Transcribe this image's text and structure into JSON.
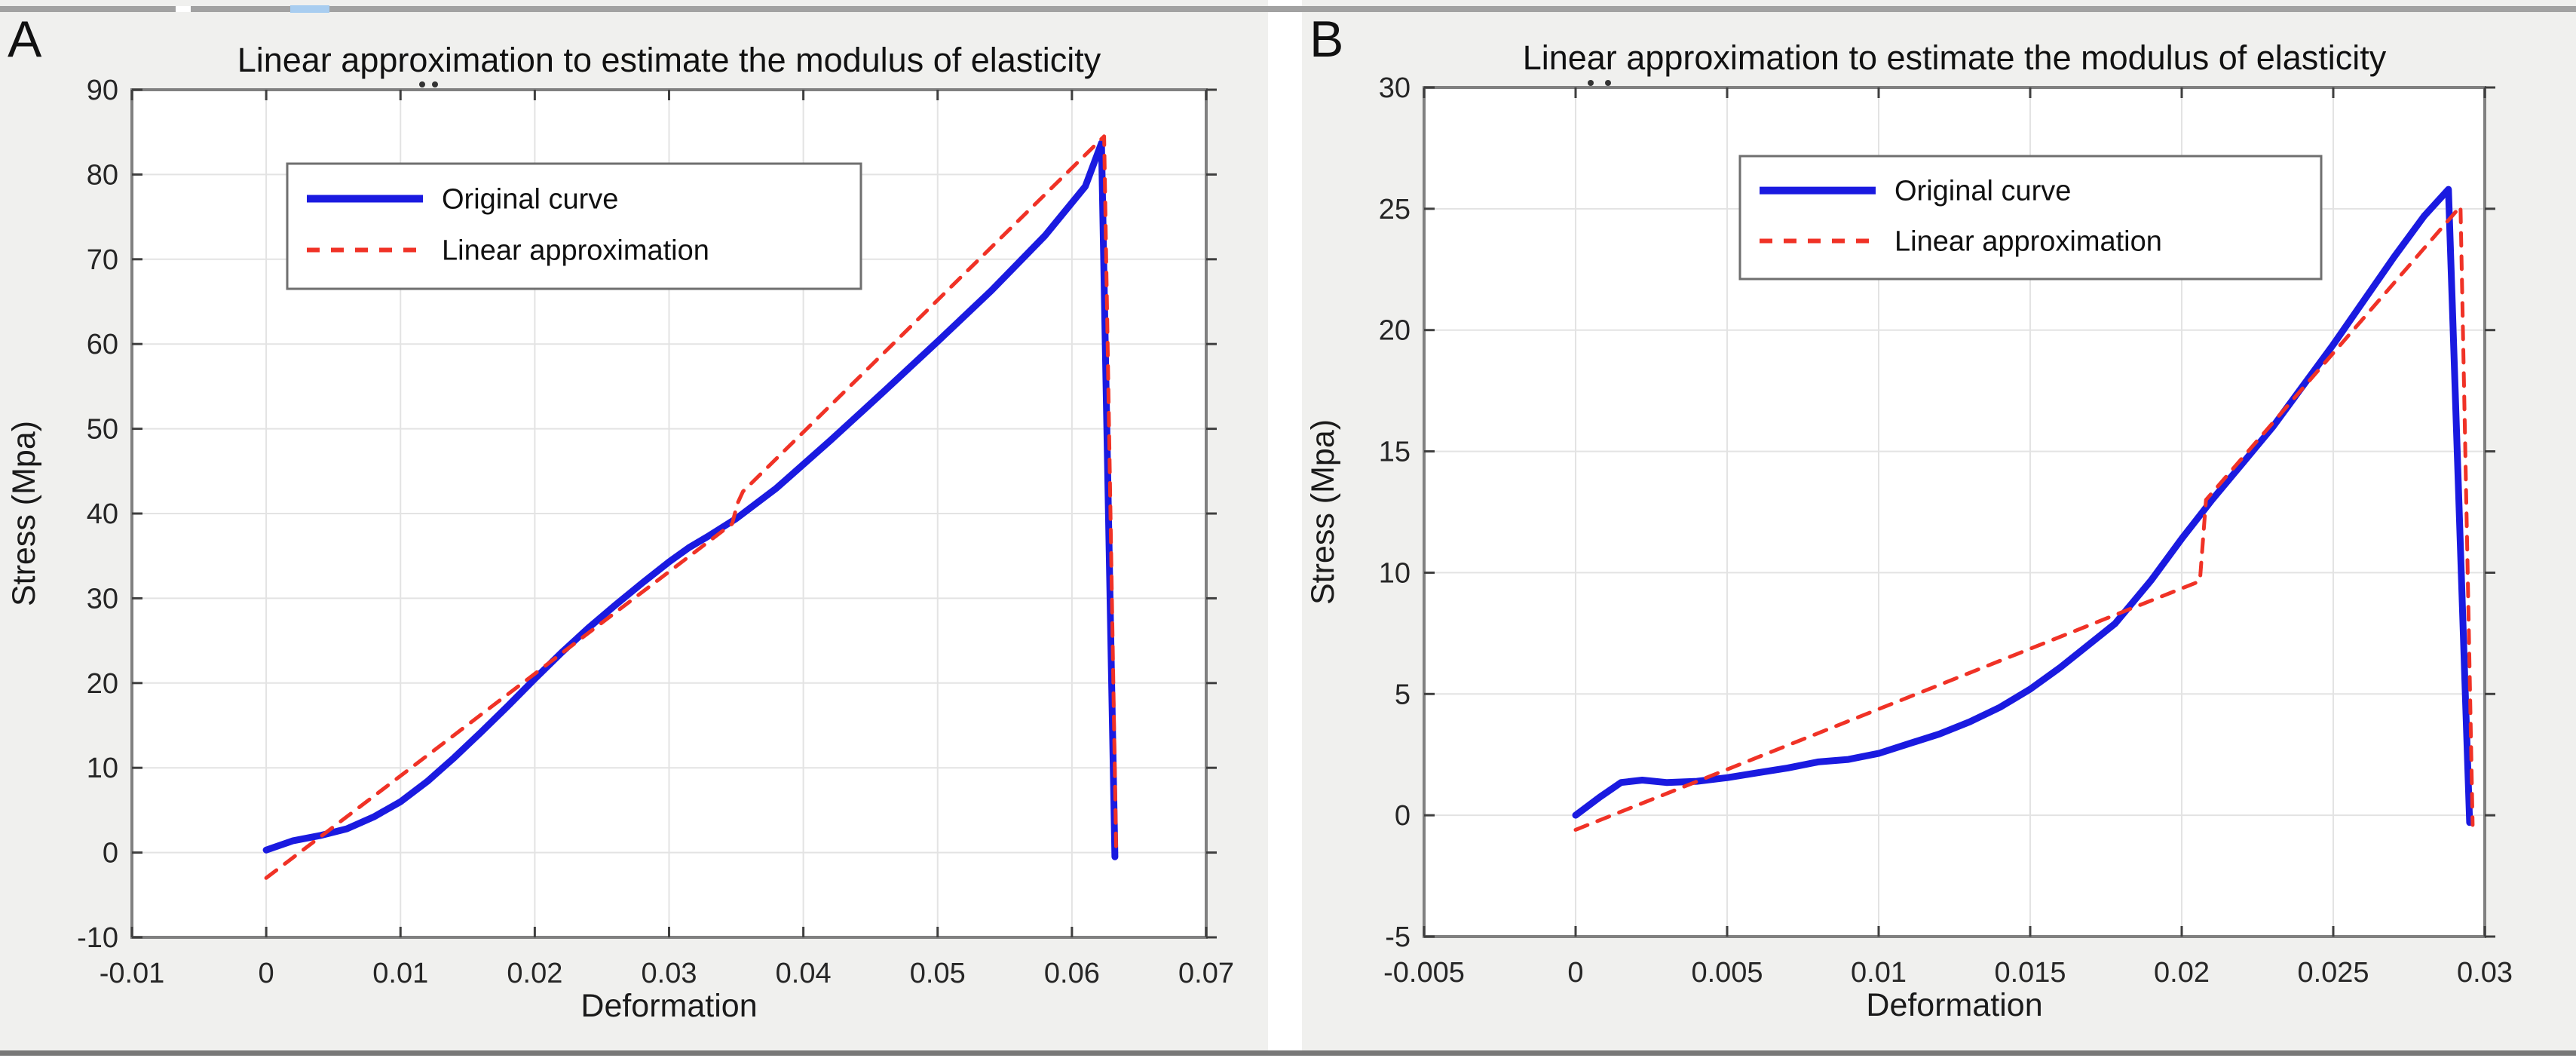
{
  "figure": {
    "panel_a_label": "A",
    "panel_b_label": "B"
  },
  "colors": {
    "original_curve": "#1a1ae0",
    "linear_approximation": "#f03226",
    "figure_background": "#f0f0ee",
    "plot_background": "#ffffff",
    "grid": "#e3e3e3",
    "frame": "#808080",
    "tick": "#3f3f3f"
  },
  "chart_data": [
    {
      "type": "line",
      "panel": "A",
      "title": "Linear approximation to estimate the modulus of elasticity",
      "xlabel": "Deformation",
      "ylabel": "Stress (Mpa)",
      "xlim": [
        -0.01,
        0.07
      ],
      "ylim": [
        -10,
        90
      ],
      "xticks": [
        -0.01,
        0,
        0.01,
        0.02,
        0.03,
        0.04,
        0.05,
        0.06,
        0.07
      ],
      "xtick_labels": [
        "-0.01",
        "0",
        "0.01",
        "0.02",
        "0.03",
        "0.04",
        "0.05",
        "0.06",
        "0.07"
      ],
      "yticks": [
        -10,
        0,
        10,
        20,
        30,
        40,
        50,
        60,
        70,
        80,
        90
      ],
      "ytick_labels": [
        "-10",
        "0",
        "10",
        "20",
        "30",
        "40",
        "50",
        "60",
        "70",
        "80",
        "90"
      ],
      "grid": true,
      "legend_position": "upper-left",
      "legend": [
        "Original curve",
        "Linear approximation"
      ],
      "series": [
        {
          "name": "Original curve",
          "color": "#1a1ae0",
          "style": "solid",
          "width": 9,
          "points": [
            [
              0,
              0.3
            ],
            [
              0.002,
              1.4
            ],
            [
              0.004,
              2.0
            ],
            [
              0.006,
              2.8
            ],
            [
              0.008,
              4.2
            ],
            [
              0.01,
              6.0
            ],
            [
              0.012,
              8.4
            ],
            [
              0.014,
              11.2
            ],
            [
              0.016,
              14.2
            ],
            [
              0.018,
              17.3
            ],
            [
              0.02,
              20.5
            ],
            [
              0.022,
              23.6
            ],
            [
              0.024,
              26.5
            ],
            [
              0.026,
              29.2
            ],
            [
              0.028,
              31.8
            ],
            [
              0.03,
              34.3
            ],
            [
              0.0315,
              36.0
            ],
            [
              0.033,
              37.4
            ],
            [
              0.035,
              39.4
            ],
            [
              0.038,
              43.0
            ],
            [
              0.042,
              48.6
            ],
            [
              0.046,
              54.4
            ],
            [
              0.05,
              60.3
            ],
            [
              0.054,
              66.3
            ],
            [
              0.058,
              72.8
            ],
            [
              0.061,
              78.6
            ],
            [
              0.0622,
              83.7
            ],
            [
              0.0632,
              -0.5
            ]
          ]
        },
        {
          "name": "Linear approximation",
          "color": "#f03226",
          "style": "dashed",
          "width": 5,
          "points": [
            [
              0,
              -3.0
            ],
            [
              0.0347,
              38.8
            ],
            [
              0.0351,
              41.2
            ],
            [
              0.0355,
              42.6
            ],
            [
              0.0624,
              84.5
            ],
            [
              0.0633,
              -0.5
            ]
          ]
        }
      ]
    },
    {
      "type": "line",
      "panel": "B",
      "title": "Linear approximation to estimate the modulus of elasticity",
      "xlabel": "Deformation",
      "ylabel": "Stress (Mpa)",
      "xlim": [
        -0.005,
        0.03
      ],
      "ylim": [
        -5,
        30
      ],
      "xticks": [
        -0.005,
        0,
        0.005,
        0.01,
        0.015,
        0.02,
        0.025,
        0.03
      ],
      "xtick_labels": [
        "-0.005",
        "0",
        "0.005",
        "0.01",
        "0.015",
        "0.02",
        "0.025",
        "0.03"
      ],
      "yticks": [
        -5,
        0,
        5,
        10,
        15,
        20,
        25,
        30
      ],
      "ytick_labels": [
        "-5",
        "0",
        "5",
        "10",
        "15",
        "20",
        "25",
        "30"
      ],
      "grid": true,
      "legend_position": "upper-center",
      "legend": [
        "Original curve",
        "Linear approximation"
      ],
      "series": [
        {
          "name": "Original curve",
          "color": "#1a1ae0",
          "style": "solid",
          "width": 9,
          "points": [
            [
              0,
              0
            ],
            [
              0.0008,
              0.75
            ],
            [
              0.0015,
              1.35
            ],
            [
              0.0022,
              1.45
            ],
            [
              0.003,
              1.35
            ],
            [
              0.004,
              1.4
            ],
            [
              0.005,
              1.55
            ],
            [
              0.006,
              1.75
            ],
            [
              0.007,
              1.95
            ],
            [
              0.008,
              2.2
            ],
            [
              0.009,
              2.3
            ],
            [
              0.01,
              2.55
            ],
            [
              0.011,
              2.95
            ],
            [
              0.012,
              3.35
            ],
            [
              0.013,
              3.85
            ],
            [
              0.014,
              4.45
            ],
            [
              0.015,
              5.2
            ],
            [
              0.016,
              6.1
            ],
            [
              0.017,
              7.1
            ],
            [
              0.0178,
              7.9
            ],
            [
              0.019,
              9.7
            ],
            [
              0.02,
              11.4
            ],
            [
              0.021,
              13.0
            ],
            [
              0.022,
              14.5
            ],
            [
              0.023,
              16.0
            ],
            [
              0.024,
              17.7
            ],
            [
              0.025,
              19.4
            ],
            [
              0.026,
              21.2
            ],
            [
              0.027,
              23.0
            ],
            [
              0.028,
              24.7
            ],
            [
              0.0288,
              25.8
            ],
            [
              0.0295,
              -0.3
            ]
          ]
        },
        {
          "name": "Linear approximation",
          "color": "#f03226",
          "style": "dashed",
          "width": 5,
          "points": [
            [
              0,
              -0.6
            ],
            [
              0.0206,
              9.65
            ],
            [
              0.0208,
              13.0
            ],
            [
              0.0292,
              25.1
            ],
            [
              0.0296,
              -0.4
            ]
          ]
        }
      ]
    }
  ]
}
